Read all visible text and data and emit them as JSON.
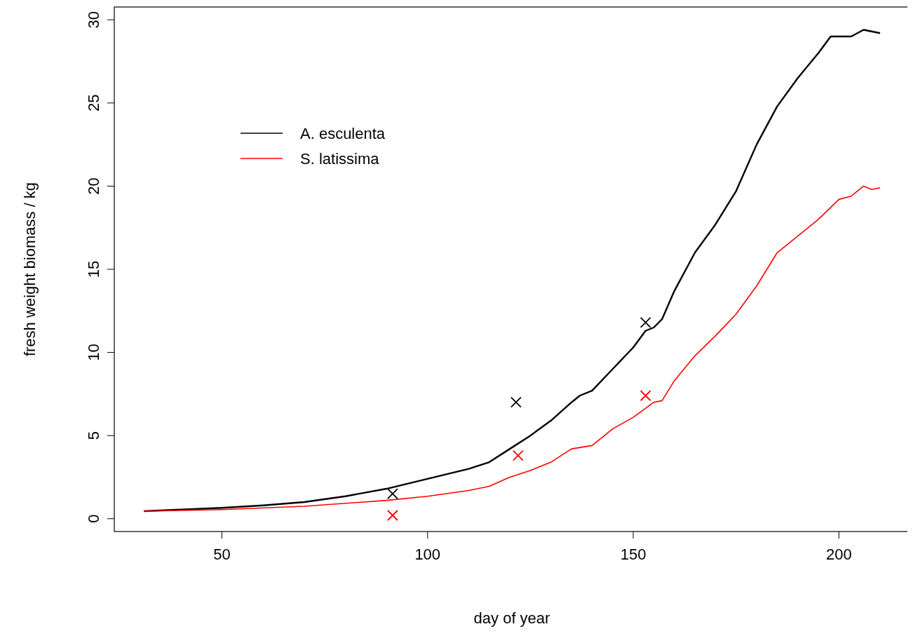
{
  "chart_data": {
    "type": "line",
    "xlabel": "day of year",
    "ylabel": "fresh weight biomass / kg",
    "xlim": [
      23.84,
      217.16
    ],
    "xticks": [
      50,
      100,
      150,
      200
    ],
    "ylim": [
      -0.77,
      30.77
    ],
    "yticks": [
      0,
      5,
      10,
      15,
      20,
      25,
      30
    ],
    "grid": false,
    "legend": "top left",
    "line_style": "solid",
    "series": [
      {
        "name": "A. esculenta",
        "color": "#000000",
        "marker": "none",
        "x": [
          31,
          40,
          50,
          60,
          70,
          80,
          90,
          100,
          110,
          115,
          120,
          125,
          130,
          135,
          137,
          140,
          145,
          150,
          153,
          155,
          157,
          160,
          165,
          170,
          175,
          180,
          185,
          190,
          195,
          198,
          200,
          203,
          206,
          210
        ],
        "values": [
          0.45,
          0.55,
          0.65,
          0.8,
          1.0,
          1.35,
          1.8,
          2.4,
          3.0,
          3.4,
          4.2,
          5.0,
          5.9,
          7.0,
          7.4,
          7.7,
          9.0,
          10.3,
          11.3,
          11.5,
          12.0,
          13.7,
          16.0,
          17.7,
          19.7,
          22.5,
          24.8,
          26.5,
          28.0,
          29.0,
          29.0,
          29.0,
          29.4,
          29.2
        ]
      },
      {
        "name": "S. latissima",
        "color": "#ff0000",
        "marker": "none",
        "x": [
          31,
          50,
          70,
          90,
          100,
          110,
          115,
          120,
          125,
          130,
          135,
          140,
          145,
          150,
          155,
          157,
          160,
          165,
          170,
          175,
          180,
          185,
          190,
          195,
          200,
          203,
          206,
          208,
          210
        ],
        "values": [
          0.45,
          0.55,
          0.75,
          1.1,
          1.35,
          1.7,
          1.95,
          2.5,
          2.9,
          3.4,
          4.2,
          4.4,
          5.4,
          6.1,
          7.0,
          7.1,
          8.3,
          9.8,
          11.0,
          12.3,
          14.0,
          16.0,
          17.0,
          18.0,
          19.2,
          19.4,
          20.0,
          19.8,
          19.9
        ]
      },
      {
        "type": "scatter",
        "color": "#000000",
        "marker": "cross",
        "x": [
          91.5,
          121.5,
          153
        ],
        "values": [
          1.5,
          7.0,
          11.8
        ]
      },
      {
        "type": "scatter",
        "color": "#ff0000",
        "marker": "cross",
        "x": [
          91.5,
          122,
          153
        ],
        "values": [
          0.2,
          3.8,
          7.4
        ]
      }
    ]
  }
}
